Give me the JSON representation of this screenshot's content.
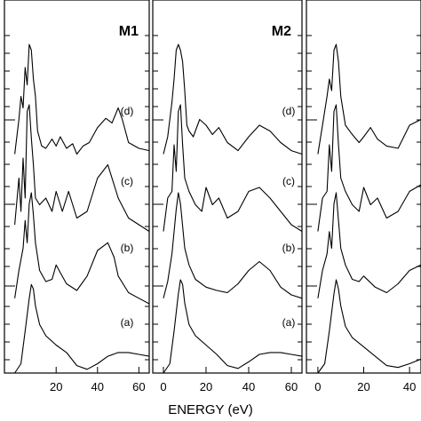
{
  "figure": {
    "xlabel": "ENERGY (eV)"
  },
  "chart_data": [
    {
      "type": "line",
      "title": "M1",
      "xlabel": "ENERGY (eV)",
      "xlim": [
        -5,
        65
      ],
      "xticks": [
        20,
        40,
        60
      ],
      "series": [
        {
          "name": "(a)",
          "x": [
            0,
            3,
            5,
            7,
            8,
            9,
            10,
            12,
            15,
            20,
            25,
            30,
            35,
            40,
            45,
            50,
            55,
            60,
            65
          ],
          "y": [
            0.0,
            0.1,
            0.45,
            0.8,
            0.95,
            0.9,
            0.72,
            0.52,
            0.4,
            0.3,
            0.22,
            0.08,
            0.04,
            0.1,
            0.18,
            0.22,
            0.22,
            0.2,
            0.18
          ]
        },
        {
          "name": "(b)",
          "x": [
            0,
            2,
            4,
            5,
            6,
            7,
            8,
            9,
            10,
            12,
            15,
            18,
            20,
            22,
            25,
            30,
            35,
            40,
            45,
            48,
            50,
            55,
            60,
            65
          ],
          "y": [
            0.05,
            0.3,
            0.5,
            0.75,
            0.55,
            0.9,
            1.0,
            0.8,
            0.55,
            0.3,
            0.2,
            0.22,
            0.35,
            0.28,
            0.18,
            0.12,
            0.25,
            0.48,
            0.55,
            0.42,
            0.25,
            0.1,
            0.05,
            0.0
          ]
        },
        {
          "name": "(c)",
          "x": [
            0,
            2,
            3,
            4,
            5,
            6,
            7,
            8,
            9,
            10,
            12,
            15,
            18,
            20,
            23,
            26,
            30,
            35,
            40,
            45,
            50,
            55,
            60,
            65
          ],
          "y": [
            0.1,
            0.45,
            0.2,
            0.6,
            0.3,
            0.95,
            1.0,
            0.75,
            0.55,
            0.3,
            0.25,
            0.3,
            0.2,
            0.35,
            0.2,
            0.35,
            0.15,
            0.2,
            0.45,
            0.55,
            0.3,
            0.15,
            0.1,
            0.05
          ]
        },
        {
          "name": "(d)",
          "x": [
            0,
            2,
            3,
            4,
            5,
            6,
            7,
            8,
            9,
            10,
            11,
            13,
            15,
            18,
            20,
            22,
            25,
            28,
            30,
            33,
            36,
            40,
            44,
            47,
            50,
            52,
            55,
            60,
            65
          ],
          "y": [
            0.05,
            0.35,
            0.55,
            0.45,
            0.8,
            0.65,
            1.0,
            0.95,
            0.7,
            0.55,
            0.25,
            0.12,
            0.1,
            0.18,
            0.12,
            0.2,
            0.1,
            0.14,
            0.05,
            0.12,
            0.15,
            0.28,
            0.36,
            0.32,
            0.45,
            0.35,
            0.15,
            0.1,
            0.08
          ]
        }
      ]
    },
    {
      "type": "line",
      "title": "M2",
      "xlabel": "ENERGY (eV)",
      "xlim": [
        -5,
        65
      ],
      "xticks": [
        0,
        20,
        40,
        60
      ],
      "series": [
        {
          "name": "(a)",
          "x": [
            0,
            3,
            5,
            7,
            8,
            9,
            10,
            12,
            15,
            20,
            25,
            30,
            35,
            40,
            45,
            50,
            55,
            60,
            65
          ],
          "y": [
            0.0,
            0.1,
            0.45,
            0.85,
            1.0,
            0.95,
            0.75,
            0.52,
            0.4,
            0.3,
            0.2,
            0.08,
            0.05,
            0.12,
            0.2,
            0.22,
            0.22,
            0.2,
            0.18
          ]
        },
        {
          "name": "(b)",
          "x": [
            0,
            2,
            4,
            6,
            7,
            8,
            9,
            10,
            12,
            15,
            20,
            25,
            30,
            35,
            40,
            45,
            50,
            55,
            60,
            65
          ],
          "y": [
            0.05,
            0.2,
            0.45,
            0.85,
            1.0,
            0.9,
            0.7,
            0.5,
            0.35,
            0.22,
            0.15,
            0.12,
            0.1,
            0.18,
            0.3,
            0.38,
            0.3,
            0.15,
            0.08,
            0.05
          ]
        },
        {
          "name": "(c)",
          "x": [
            0,
            2,
            4,
            5,
            6,
            7,
            8,
            9,
            10,
            12,
            15,
            18,
            20,
            23,
            26,
            30,
            35,
            40,
            45,
            50,
            55,
            60,
            65
          ],
          "y": [
            0.05,
            0.3,
            0.35,
            0.7,
            0.5,
            0.95,
            1.0,
            0.7,
            0.45,
            0.35,
            0.25,
            0.2,
            0.38,
            0.25,
            0.3,
            0.15,
            0.2,
            0.35,
            0.38,
            0.3,
            0.2,
            0.1,
            0.05
          ]
        },
        {
          "name": "(d)",
          "x": [
            0,
            2,
            4,
            5,
            6,
            7,
            8,
            9,
            10,
            11,
            12,
            14,
            17,
            20,
            23,
            26,
            30,
            35,
            40,
            45,
            50,
            55,
            60,
            65
          ],
          "y": [
            0.05,
            0.2,
            0.5,
            0.7,
            0.95,
            1.0,
            0.95,
            0.85,
            0.6,
            0.3,
            0.25,
            0.2,
            0.35,
            0.3,
            0.22,
            0.28,
            0.15,
            0.08,
            0.2,
            0.3,
            0.25,
            0.15,
            0.08,
            0.05
          ]
        }
      ]
    },
    {
      "type": "line",
      "title": "",
      "xlabel": "ENERGY (eV)",
      "xlim": [
        -5,
        45
      ],
      "xticks": [
        0,
        20,
        40
      ],
      "series": [
        {
          "name": "",
          "x": [
            0,
            3,
            5,
            7,
            8,
            9,
            10,
            12,
            15,
            20,
            25,
            30,
            35,
            40,
            45
          ],
          "y": [
            0.0,
            0.1,
            0.45,
            0.85,
            1.0,
            0.9,
            0.72,
            0.5,
            0.38,
            0.28,
            0.18,
            0.08,
            0.06,
            0.1,
            0.15
          ]
        },
        {
          "name": "",
          "x": [
            0,
            2,
            4,
            5,
            6,
            7,
            8,
            9,
            10,
            12,
            15,
            18,
            20,
            25,
            30,
            35,
            40,
            45
          ],
          "y": [
            0.05,
            0.3,
            0.45,
            0.65,
            0.5,
            0.9,
            1.0,
            0.75,
            0.5,
            0.35,
            0.22,
            0.2,
            0.25,
            0.15,
            0.1,
            0.18,
            0.3,
            0.35
          ]
        },
        {
          "name": "",
          "x": [
            0,
            2,
            4,
            5,
            6,
            7,
            8,
            9,
            10,
            12,
            15,
            18,
            20,
            23,
            26,
            30,
            35,
            40,
            45
          ],
          "y": [
            0.05,
            0.3,
            0.35,
            0.7,
            0.5,
            0.95,
            1.0,
            0.7,
            0.45,
            0.35,
            0.25,
            0.2,
            0.38,
            0.25,
            0.3,
            0.15,
            0.2,
            0.35,
            0.4
          ]
        },
        {
          "name": "",
          "x": [
            0,
            2,
            4,
            5,
            6,
            7,
            8,
            9,
            10,
            12,
            15,
            18,
            20,
            23,
            26,
            30,
            35,
            40,
            45
          ],
          "y": [
            0.05,
            0.3,
            0.55,
            0.7,
            0.6,
            0.95,
            1.0,
            0.85,
            0.55,
            0.3,
            0.22,
            0.15,
            0.2,
            0.28,
            0.18,
            0.12,
            0.1,
            0.3,
            0.35
          ]
        }
      ]
    }
  ]
}
